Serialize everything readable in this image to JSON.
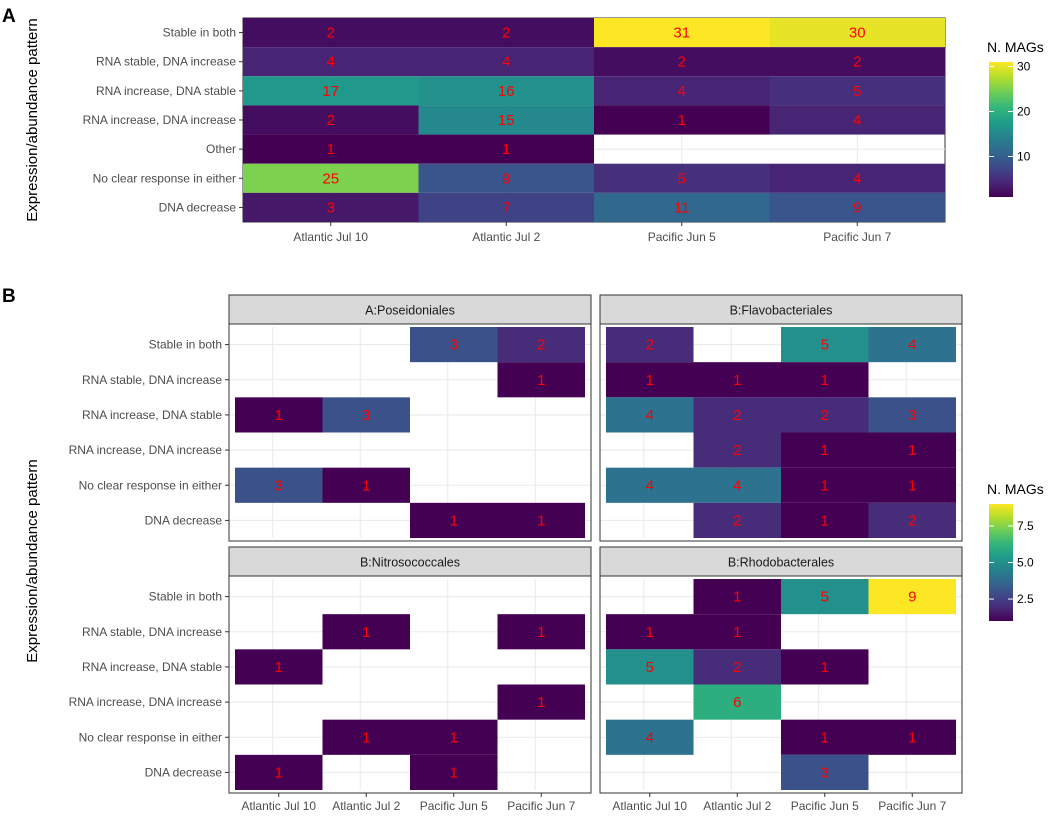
{
  "colorscale": [
    "#440154",
    "#482878",
    "#3e4989",
    "#31688e",
    "#26828e",
    "#1f9e89",
    "#35b779",
    "#6ece58",
    "#b5de2b",
    "#fde725"
  ],
  "chart_data": [
    {
      "id": "A",
      "type": "heatmap",
      "panel_label": "A",
      "ylabel": "Expression/abundance pattern",
      "x_categories": [
        "Atlantic Jul 10",
        "Atlantic Jul 2",
        "Pacific Jun 5",
        "Pacific Jun 7"
      ],
      "y_categories": [
        "Stable in both",
        "RNA stable, DNA increase",
        "RNA increase, DNA stable",
        "RNA increase, DNA increase",
        "Other",
        "No clear response in either",
        "DNA decrease"
      ],
      "values": [
        [
          2,
          2,
          31,
          30
        ],
        [
          4,
          4,
          2,
          2
        ],
        [
          17,
          16,
          4,
          5
        ],
        [
          2,
          15,
          1,
          4
        ],
        [
          1,
          1,
          null,
          null
        ],
        [
          25,
          9,
          5,
          4
        ],
        [
          3,
          7,
          11,
          9
        ]
      ],
      "legend": {
        "title": "N. MAGs",
        "min": 1,
        "max": 31,
        "ticks": [
          10,
          20,
          30
        ],
        "tick_labels": [
          "10",
          "20",
          "30"
        ]
      }
    },
    {
      "id": "B",
      "type": "heatmap",
      "panel_label": "B",
      "ylabel": "Expression/abundance pattern",
      "x_categories": [
        "Atlantic Jul 10",
        "Atlantic Jul 2",
        "Pacific Jun 5",
        "Pacific Jun 7"
      ],
      "y_categories": [
        "Stable in both",
        "RNA stable, DNA increase",
        "RNA increase, DNA stable",
        "RNA increase, DNA increase",
        "No clear response in either",
        "DNA decrease"
      ],
      "legend": {
        "title": "N. MAGs",
        "min": 1,
        "max": 9,
        "ticks": [
          2.5,
          5.0,
          7.5
        ],
        "tick_labels": [
          "2.5",
          "5.0",
          "7.5"
        ]
      },
      "facets": [
        {
          "title": "A:Poseidoniales",
          "values": [
            [
              null,
              null,
              3,
              2
            ],
            [
              null,
              null,
              null,
              1
            ],
            [
              1,
              3,
              null,
              null
            ],
            [
              null,
              null,
              null,
              null
            ],
            [
              3,
              1,
              null,
              null
            ],
            [
              null,
              null,
              1,
              1
            ]
          ]
        },
        {
          "title": "B:Flavobacteriales",
          "values": [
            [
              2,
              null,
              5,
              4
            ],
            [
              1,
              1,
              1,
              null
            ],
            [
              4,
              2,
              2,
              3
            ],
            [
              null,
              2,
              1,
              1
            ],
            [
              4,
              4,
              1,
              1
            ],
            [
              null,
              2,
              1,
              2
            ]
          ]
        },
        {
          "title": "B:Nitrosococcales",
          "values": [
            [
              null,
              null,
              null,
              null
            ],
            [
              null,
              1,
              null,
              1
            ],
            [
              1,
              null,
              null,
              null
            ],
            [
              null,
              null,
              null,
              1
            ],
            [
              null,
              1,
              1,
              null
            ],
            [
              1,
              null,
              1,
              null
            ]
          ]
        },
        {
          "title": "B:Rhodobacterales",
          "values": [
            [
              null,
              1,
              5,
              9
            ],
            [
              1,
              1,
              null,
              null
            ],
            [
              5,
              2,
              1,
              null
            ],
            [
              null,
              6,
              null,
              null
            ],
            [
              4,
              null,
              1,
              1
            ],
            [
              null,
              null,
              3,
              null
            ]
          ]
        }
      ]
    }
  ]
}
